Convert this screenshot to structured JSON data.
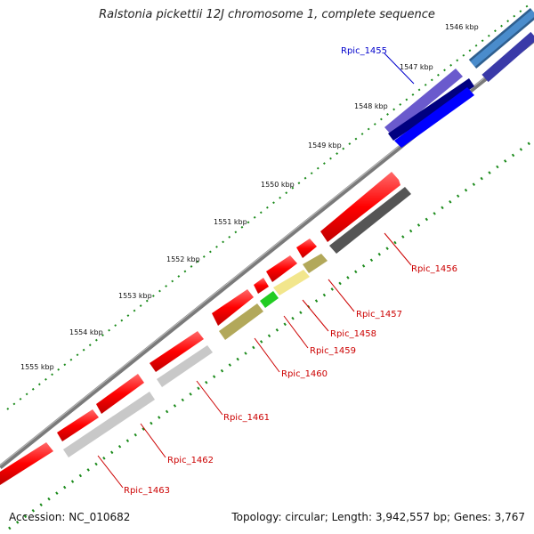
{
  "title": "Ralstonia pickettii 12J chromosome 1, complete sequence",
  "accession_text": "Accession: NC_010682",
  "summary_text": "Topology: circular; Length: 3,942,557 bp; Genes: 3,767",
  "ruler": {
    "unit": "kbp",
    "labels": [
      "1546 kbp",
      "1547 kbp",
      "1548 kbp",
      "1549 kbp",
      "1550 kbp",
      "1551 kbp",
      "1552 kbp",
      "1553 kbp",
      "1554 kbp",
      "1555 kbp"
    ]
  },
  "colors": {
    "cds_red": "#ff0000",
    "blue": "#0000ff",
    "navy": "#2a1580",
    "steelblue": "#3a7bbf",
    "gray": "#c8c8c8",
    "darkgray": "#555555",
    "olive": "#b2a85a",
    "khaki": "#f2e68c",
    "green": "#22cc22",
    "tick_green": "#1a8a1a",
    "label_red": "#cc0000",
    "label_blue": "#0000cc"
  },
  "genes": [
    {
      "id": "Rpic_1455",
      "color": "blue"
    },
    {
      "id": "Rpic_1456",
      "color": "red"
    },
    {
      "id": "Rpic_1457",
      "color": "red"
    },
    {
      "id": "Rpic_1458",
      "color": "red"
    },
    {
      "id": "Rpic_1459",
      "color": "red"
    },
    {
      "id": "Rpic_1460",
      "color": "red"
    },
    {
      "id": "Rpic_1461",
      "color": "red"
    },
    {
      "id": "Rpic_1462",
      "color": "red"
    },
    {
      "id": "Rpic_1463",
      "color": "red"
    }
  ]
}
